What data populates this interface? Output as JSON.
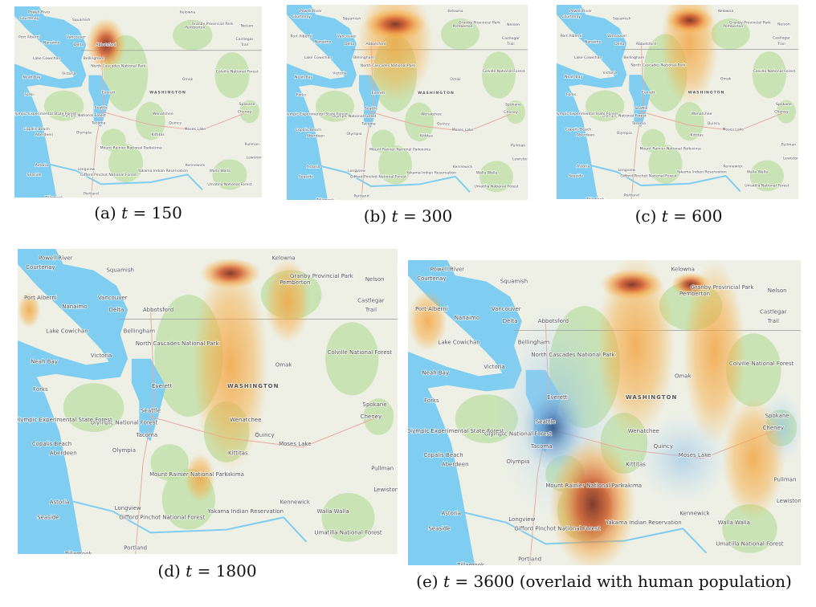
{
  "panels": [
    {
      "tag": "(a)",
      "var": "t",
      "eq": "= 150"
    },
    {
      "tag": "(b)",
      "var": "t",
      "eq": "= 300"
    },
    {
      "tag": "(c)",
      "var": "t",
      "eq": "= 600"
    },
    {
      "tag": "(d)",
      "var": "t",
      "eq": "= 1800"
    },
    {
      "tag": "(e)",
      "var": "t",
      "eq": "= 3600 (overlaid with human population)"
    }
  ],
  "place_labels": [
    "Powell River",
    "Squamish",
    "Kelowna",
    "Vancouver",
    "Nanaimo",
    "Abbotsford",
    "Bellingham",
    "Lake Cowichan",
    "Victoria",
    "Neah Bay",
    "Forks",
    "Everett",
    "Seattle",
    "Tacoma",
    "Olympia",
    "Aberdeen",
    "Copalis Beach",
    "WASHINGTON",
    "Omak",
    "Wenatchee",
    "Quincy",
    "Moses Lake",
    "Kittitas",
    "Yakima",
    "Spokane",
    "Cheney",
    "Pullman",
    "Lewiston",
    "Kennewick",
    "Walla Walla",
    "Astoria",
    "Seaside",
    "Longview",
    "Portland",
    "Courtenay",
    "Port Alberni",
    "Delta",
    "Castlegar",
    "Trail",
    "Nelson",
    "Pemberton",
    "Olympic National Forest",
    "Olympic Experimental State Forest",
    "North Cascades National Park",
    "Colville National Forest",
    "Mount Rainier National Park",
    "Gifford Pinchot National Forest",
    "Yakama Indian Reservation",
    "Umatilla National Forest",
    "Granby Provincial Park",
    "Tillamook"
  ]
}
